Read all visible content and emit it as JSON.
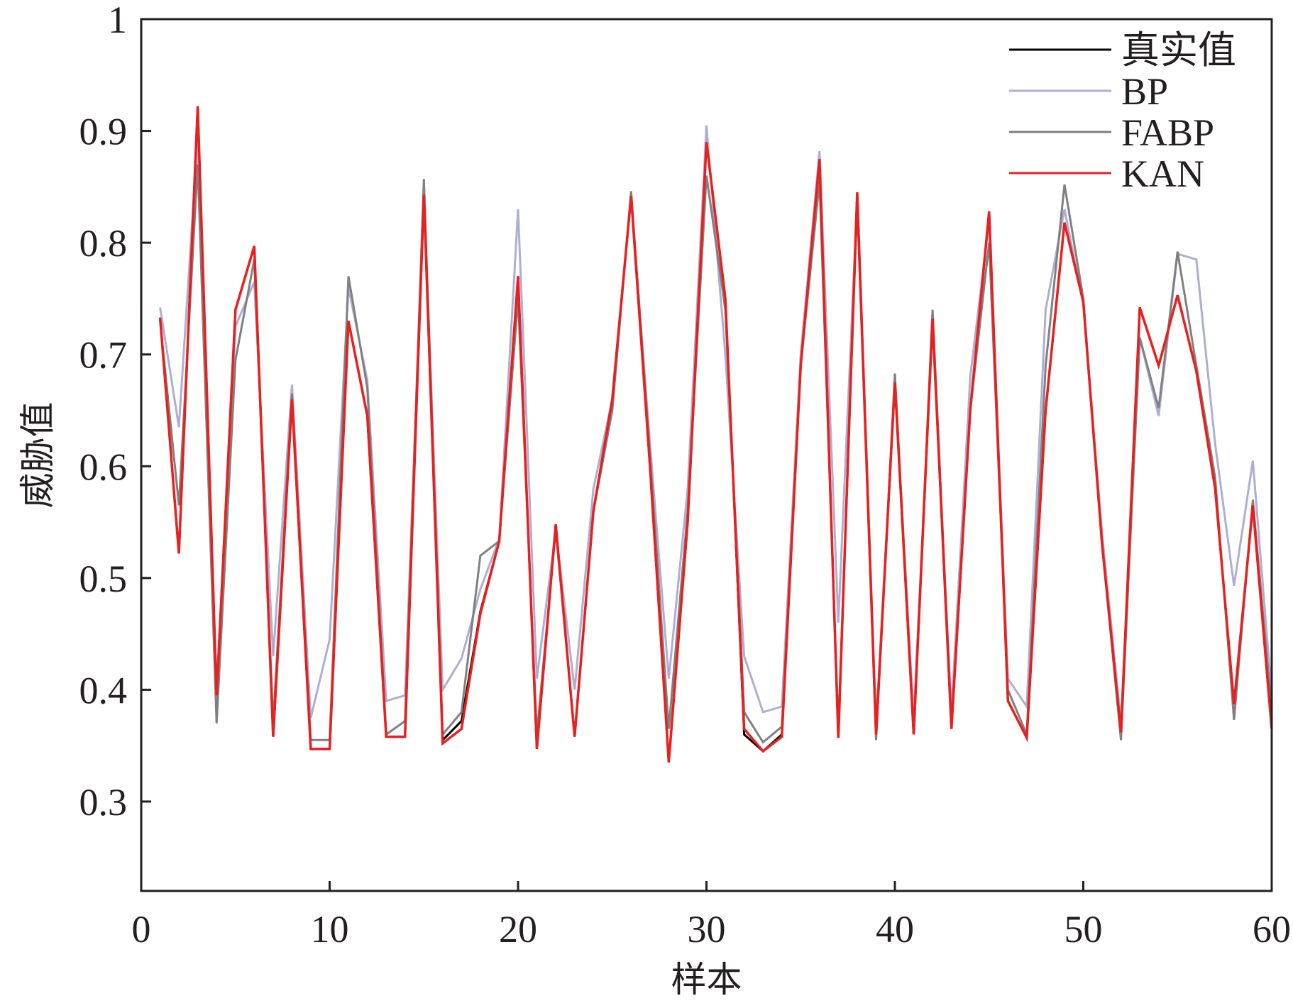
{
  "chart_data": {
    "type": "line",
    "xlabel": "样本",
    "ylabel": "威胁值",
    "xlim": [
      0,
      60
    ],
    "ylim": [
      0.22,
      1.0
    ],
    "xticks": [
      0,
      10,
      20,
      30,
      40,
      50,
      60
    ],
    "yticks": [
      0.3,
      0.4,
      0.5,
      0.6,
      0.7,
      0.8,
      0.9,
      1
    ],
    "x": [
      1,
      2,
      3,
      4,
      5,
      6,
      7,
      8,
      9,
      10,
      11,
      12,
      13,
      14,
      15,
      16,
      17,
      18,
      19,
      20,
      21,
      22,
      23,
      24,
      25,
      26,
      27,
      28,
      29,
      30,
      31,
      32,
      33,
      34,
      35,
      36,
      37,
      38,
      39,
      40,
      41,
      42,
      43,
      44,
      45,
      46,
      47,
      48,
      49,
      50,
      51,
      52,
      53,
      54,
      55,
      56,
      57,
      58,
      59,
      60
    ],
    "legend_position": "top-right",
    "grid": false,
    "series": [
      {
        "name": "真实值",
        "color": "#000000",
        "values": [
          0.733,
          0.522,
          0.922,
          0.395,
          0.74,
          0.797,
          0.358,
          0.66,
          0.347,
          0.347,
          0.73,
          0.645,
          0.358,
          0.358,
          0.843,
          0.355,
          0.372,
          0.47,
          0.533,
          0.77,
          0.347,
          0.548,
          0.358,
          0.56,
          0.66,
          0.842,
          0.6,
          0.335,
          0.55,
          0.89,
          0.75,
          0.36,
          0.345,
          0.36,
          0.69,
          0.875,
          0.357,
          0.845,
          0.36,
          0.675,
          0.36,
          0.732,
          0.365,
          0.65,
          0.828,
          0.39,
          0.357,
          0.65,
          0.818,
          0.747,
          0.53,
          0.362,
          0.742,
          0.69,
          0.753,
          0.685,
          0.58,
          0.387,
          0.565,
          0.365
        ]
      },
      {
        "name": "BP",
        "color": "#aeaed4",
        "values": [
          0.742,
          0.635,
          0.895,
          0.385,
          0.725,
          0.765,
          0.43,
          0.673,
          0.375,
          0.445,
          0.76,
          0.677,
          0.39,
          0.395,
          0.845,
          0.4,
          0.428,
          0.49,
          0.535,
          0.83,
          0.41,
          0.543,
          0.4,
          0.58,
          0.66,
          0.84,
          0.62,
          0.41,
          0.58,
          0.905,
          0.7,
          0.43,
          0.38,
          0.385,
          0.7,
          0.882,
          0.46,
          0.84,
          0.37,
          0.675,
          0.375,
          0.725,
          0.38,
          0.68,
          0.82,
          0.41,
          0.385,
          0.74,
          0.83,
          0.745,
          0.54,
          0.37,
          0.715,
          0.645,
          0.79,
          0.785,
          0.62,
          0.493,
          0.605,
          0.395
        ]
      },
      {
        "name": "FABP",
        "color": "#808080",
        "values": [
          0.73,
          0.565,
          0.87,
          0.37,
          0.695,
          0.785,
          0.37,
          0.665,
          0.355,
          0.355,
          0.77,
          0.67,
          0.36,
          0.372,
          0.857,
          0.36,
          0.38,
          0.52,
          0.533,
          0.75,
          0.36,
          0.543,
          0.36,
          0.56,
          0.65,
          0.846,
          0.61,
          0.365,
          0.56,
          0.86,
          0.74,
          0.38,
          0.353,
          0.367,
          0.69,
          0.855,
          0.365,
          0.835,
          0.355,
          0.683,
          0.36,
          0.74,
          0.37,
          0.65,
          0.8,
          0.4,
          0.36,
          0.69,
          0.852,
          0.75,
          0.53,
          0.355,
          0.715,
          0.652,
          0.792,
          0.69,
          0.59,
          0.373,
          0.57,
          0.38
        ]
      },
      {
        "name": "KAN",
        "color": "#e8201f",
        "values": [
          0.733,
          0.522,
          0.922,
          0.395,
          0.74,
          0.797,
          0.358,
          0.66,
          0.347,
          0.347,
          0.73,
          0.645,
          0.358,
          0.358,
          0.843,
          0.352,
          0.365,
          0.468,
          0.533,
          0.77,
          0.347,
          0.548,
          0.358,
          0.56,
          0.66,
          0.842,
          0.6,
          0.335,
          0.55,
          0.89,
          0.75,
          0.365,
          0.345,
          0.358,
          0.69,
          0.875,
          0.357,
          0.845,
          0.36,
          0.675,
          0.36,
          0.732,
          0.365,
          0.65,
          0.828,
          0.39,
          0.357,
          0.65,
          0.818,
          0.747,
          0.53,
          0.362,
          0.742,
          0.69,
          0.753,
          0.685,
          0.58,
          0.387,
          0.565,
          0.365
        ]
      }
    ]
  }
}
